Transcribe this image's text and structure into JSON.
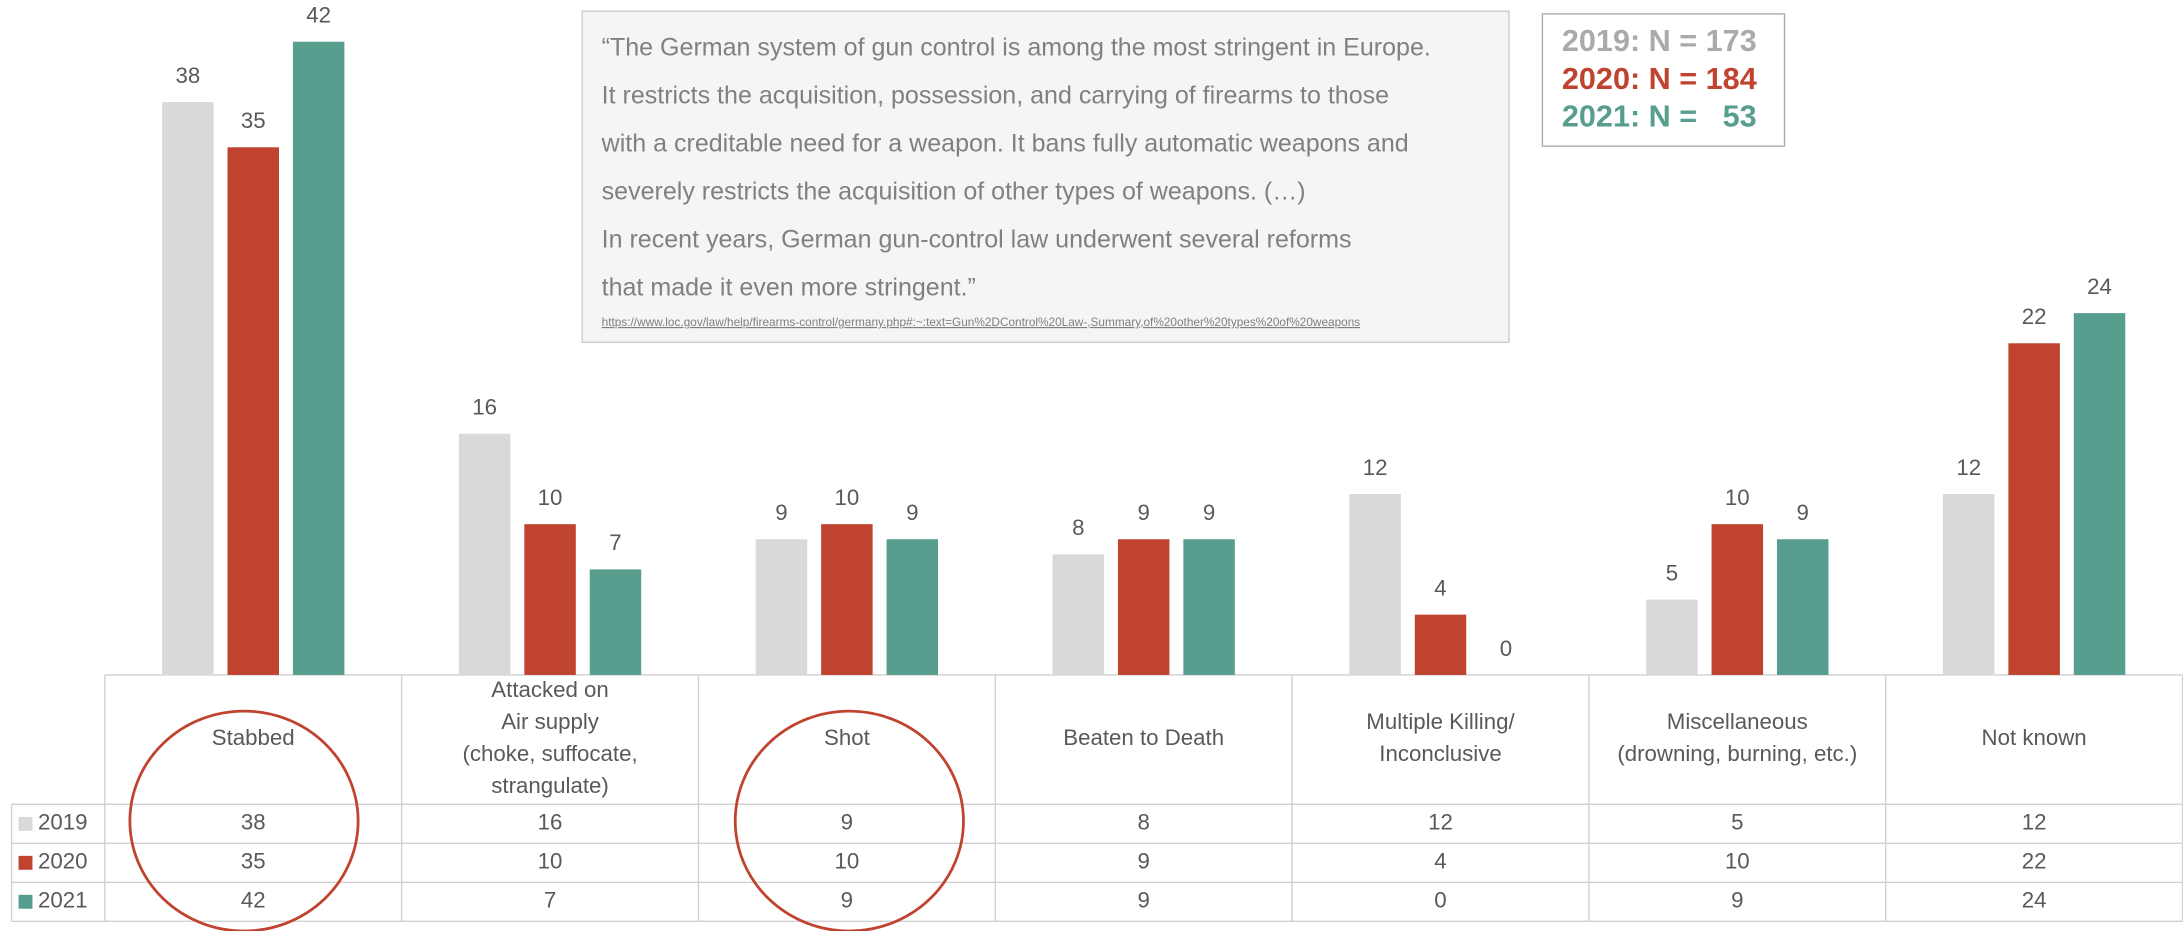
{
  "chart_data": {
    "type": "bar",
    "categories": [
      "Stabbed",
      "Attacked on\nAir supply\n(choke, suffocate,\nstrangulate)",
      "Shot",
      "Beaten to Death",
      "Multiple Killing/\nInconclusive",
      "Miscellaneous\n(drowning, burning, etc.)",
      "Not known"
    ],
    "series": [
      {
        "name": "2019",
        "color": "#d9d9d9",
        "values": [
          38,
          16,
          9,
          8,
          12,
          5,
          12
        ]
      },
      {
        "name": "2020",
        "color": "#c0432f",
        "values": [
          35,
          10,
          10,
          9,
          4,
          10,
          22
        ]
      },
      {
        "name": "2021",
        "color": "#589e8f",
        "values": [
          42,
          7,
          9,
          9,
          0,
          9,
          24
        ]
      }
    ],
    "quote": [
      "“The German system of gun control is among the most stringent in Europe.",
      "It restricts the acquisition, possession, and carrying of firearms to those",
      "with a creditable need for a weapon. It bans fully automatic weapons and",
      "severely restricts the acquisition of other types of weapons. (…)",
      "In recent years, German gun-control law underwent several reforms",
      "that made it even more stringent.”"
    ],
    "source": "https://www.loc.gov/law/help/firearms-control/germany.php#:~:text=Gun%2DControl%20Law-,Summary,of%20other%20types%20of%20weapons",
    "sample_sizes": [
      "2019: N = 173",
      "2020: N = 184",
      "2021: N =   53"
    ]
  }
}
